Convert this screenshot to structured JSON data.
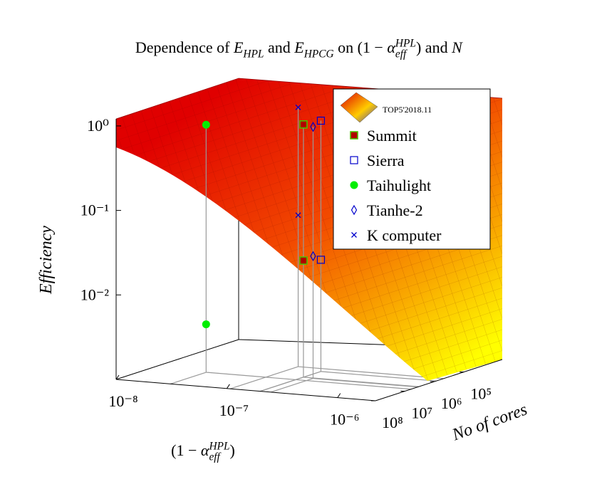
{
  "chart_data": {
    "type": "scatter3d",
    "title": [
      {
        "text": "Dependence of "
      },
      {
        "text": "E",
        "style": "it"
      },
      {
        "text": "HPL",
        "style": "sub"
      },
      {
        "text": " and "
      },
      {
        "text": "E",
        "style": "it"
      },
      {
        "text": "HPCG",
        "style": "sub"
      },
      {
        "text": " on (1 − "
      },
      {
        "text": "α",
        "style": "it"
      },
      {
        "text": "eff",
        "style": "sub"
      },
      {
        "text": "HPL",
        "style": "sup"
      },
      {
        "text": ") and "
      },
      {
        "text": "N",
        "style": "it"
      }
    ],
    "x_label": [
      {
        "text": "(1 − "
      },
      {
        "text": "α",
        "style": "it"
      },
      {
        "text": "eff",
        "style": "sub"
      },
      {
        "text": "HPL",
        "style": "sup"
      },
      {
        "text": ")"
      }
    ],
    "y_label": "No of cores",
    "z_label": "Efficiency",
    "log_scale": true,
    "xlim": [
      1e-08,
      2.2e-06
    ],
    "xticks": [
      {
        "value": 1e-08,
        "label": "10⁻⁸"
      },
      {
        "value": 1e-07,
        "label": "10⁻⁷"
      },
      {
        "value": 1e-06,
        "label": "10⁻⁶"
      }
    ],
    "ylim": [
      100000000.0,
      5000
    ],
    "yticks": [
      {
        "value": 100000000.0,
        "label": "10⁸"
      },
      {
        "value": 10000000.0,
        "label": "10⁷"
      },
      {
        "value": 1000000.0,
        "label": "10⁶"
      },
      {
        "value": 100000.0,
        "label": "10⁵"
      }
    ],
    "zlim": [
      0.001,
      1.5
    ],
    "zticks": [
      {
        "value": 1,
        "label": "10⁰"
      },
      {
        "value": 0.1,
        "label": "10⁻¹"
      },
      {
        "value": 0.01,
        "label": "10⁻²"
      }
    ],
    "legend": "top right",
    "legend_title": "TOP5'2018.11",
    "series": [
      {
        "name": "Summit",
        "marker": "square",
        "color": "#b00000",
        "edge": "#4cc000",
        "x": [
          2e-07,
          2e-07
        ],
        "cores": [
          3400000.0,
          3400000.0
        ],
        "values": [
          0.98,
          0.024
        ]
      },
      {
        "name": "Sierra",
        "marker": "square-open",
        "color": "#0000cc",
        "x": [
          2e-07,
          2e-07
        ],
        "cores": [
          870000.0,
          870000.0
        ],
        "values": [
          0.93,
          0.021
        ]
      },
      {
        "name": "Taihulight",
        "marker": "circle",
        "color": "#00ee00",
        "x": [
          3.1e-08,
          3.1e-08
        ],
        "cores": [
          6200000.0,
          6200000.0
        ],
        "values": [
          0.85,
          0.0037
        ]
      },
      {
        "name": "Tianhe-2",
        "marker": "diamond-open",
        "color": "#0000cc",
        "x": [
          2.5e-07,
          2.5e-07
        ],
        "cores": [
          3700000.0,
          3700000.0
        ],
        "values": [
          0.95,
          0.028
        ]
      },
      {
        "name": "K computer",
        "marker": "cross",
        "color": "#0000cc",
        "x": [
          1.07e-07,
          1.07e-07
        ],
        "cores": [
          490000.0,
          490000.0
        ],
        "values": [
          1.17,
          0.062
        ]
      }
    ]
  }
}
